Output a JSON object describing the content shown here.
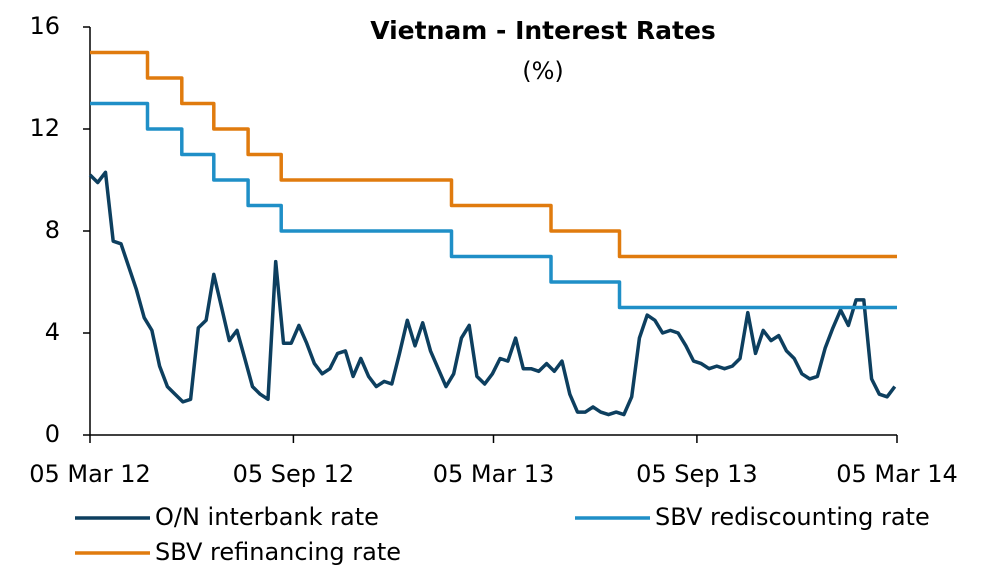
{
  "chart_data": {
    "type": "line",
    "title": "Vietnam - Interest Rates",
    "subtitle": "(%)",
    "xlim": [
      "2012-03-05",
      "2014-03-05"
    ],
    "xticks": [
      {
        "value": "2012-03-05",
        "label": "05 Mar 12"
      },
      {
        "value": "2012-09-05",
        "label": "05 Sep 12"
      },
      {
        "value": "2013-03-05",
        "label": "05 Mar 13"
      },
      {
        "value": "2013-09-05",
        "label": "05 Sep 13"
      },
      {
        "value": "2014-03-05",
        "label": "05 Mar 14"
      }
    ],
    "ylim": [
      0,
      16
    ],
    "yticks": [
      0,
      4,
      8,
      12,
      16
    ],
    "grid": false,
    "series": [
      {
        "name": "O/N interbank rate",
        "color": "#0d3f5f",
        "step": false,
        "x": [
          "2012-03-05",
          "2012-03-12",
          "2012-03-19",
          "2012-03-26",
          "2012-04-02",
          "2012-04-09",
          "2012-04-16",
          "2012-04-23",
          "2012-04-30",
          "2012-05-07",
          "2012-05-14",
          "2012-05-21",
          "2012-05-28",
          "2012-06-04",
          "2012-06-11",
          "2012-06-18",
          "2012-06-25",
          "2012-07-02",
          "2012-07-09",
          "2012-07-16",
          "2012-07-23",
          "2012-07-30",
          "2012-08-06",
          "2012-08-13",
          "2012-08-20",
          "2012-08-27",
          "2012-09-03",
          "2012-09-10",
          "2012-09-17",
          "2012-09-24",
          "2012-10-01",
          "2012-10-08",
          "2012-10-15",
          "2012-10-22",
          "2012-10-29",
          "2012-11-05",
          "2012-11-12",
          "2012-11-19",
          "2012-11-26",
          "2012-12-03",
          "2012-12-10",
          "2012-12-17",
          "2012-12-24",
          "2012-12-31",
          "2013-01-07",
          "2013-01-14",
          "2013-01-21",
          "2013-01-28",
          "2013-02-04",
          "2013-02-11",
          "2013-02-18",
          "2013-02-25",
          "2013-03-04",
          "2013-03-11",
          "2013-03-18",
          "2013-03-25",
          "2013-04-01",
          "2013-04-08",
          "2013-04-15",
          "2013-04-22",
          "2013-04-29",
          "2013-05-06",
          "2013-05-13",
          "2013-05-20",
          "2013-05-27",
          "2013-06-03",
          "2013-06-10",
          "2013-06-17",
          "2013-06-24",
          "2013-07-01",
          "2013-07-08",
          "2013-07-15",
          "2013-07-22",
          "2013-07-29",
          "2013-08-05",
          "2013-08-12",
          "2013-08-19",
          "2013-08-26",
          "2013-09-02",
          "2013-09-09",
          "2013-09-16",
          "2013-09-23",
          "2013-09-30",
          "2013-10-07",
          "2013-10-14",
          "2013-10-21",
          "2013-10-28",
          "2013-11-04",
          "2013-11-11",
          "2013-11-18",
          "2013-11-25",
          "2013-12-02",
          "2013-12-09",
          "2013-12-16",
          "2013-12-23",
          "2013-12-30",
          "2014-01-06",
          "2014-01-13",
          "2014-01-20",
          "2014-01-27",
          "2014-02-03",
          "2014-02-10",
          "2014-02-17",
          "2014-02-24",
          "2014-03-03"
        ],
        "values": [
          10.2,
          9.9,
          10.3,
          7.6,
          7.5,
          6.6,
          5.7,
          4.6,
          4.1,
          2.7,
          1.9,
          1.6,
          1.3,
          1.4,
          4.2,
          4.5,
          6.3,
          5.0,
          3.7,
          4.1,
          3.0,
          1.9,
          1.6,
          1.4,
          6.8,
          3.6,
          3.6,
          4.3,
          3.6,
          2.8,
          2.4,
          2.6,
          3.2,
          3.3,
          2.3,
          3.0,
          2.3,
          1.9,
          2.1,
          2.0,
          3.2,
          4.5,
          3.5,
          4.4,
          3.3,
          2.6,
          1.9,
          2.4,
          3.8,
          4.3,
          2.3,
          2.0,
          2.4,
          3.0,
          2.9,
          3.8,
          2.6,
          2.6,
          2.5,
          2.8,
          2.5,
          2.9,
          1.6,
          0.9,
          0.9,
          1.1,
          0.9,
          0.8,
          0.9,
          0.8,
          1.5,
          3.8,
          4.7,
          4.5,
          4.0,
          4.1,
          4.0,
          3.5,
          2.9,
          2.8,
          2.6,
          2.7,
          2.6,
          2.7,
          3.0,
          4.8,
          3.2,
          4.1,
          3.7,
          3.9,
          3.3,
          3.0,
          2.4,
          2.2,
          2.3,
          3.4,
          4.2,
          4.9,
          4.3,
          5.3,
          5.3,
          2.2,
          1.6,
          1.5,
          1.9
        ]
      },
      {
        "name": "SBV rediscounting rate",
        "color": "#1f8fc7",
        "step": true,
        "x": [
          "2012-03-05",
          "2012-04-26",
          "2012-05-27",
          "2012-06-25",
          "2012-07-26",
          "2012-08-25",
          "2013-01-26",
          "2013-04-26",
          "2013-06-27",
          "2014-03-05"
        ],
        "values": [
          13,
          12,
          11,
          10,
          9,
          8,
          7,
          6,
          5,
          5
        ]
      },
      {
        "name": "SBV refinancing rate",
        "color": "#e07b0e",
        "step": true,
        "x": [
          "2012-03-05",
          "2012-04-26",
          "2012-05-27",
          "2012-06-25",
          "2012-07-26",
          "2012-08-25",
          "2013-01-26",
          "2013-04-26",
          "2013-06-27",
          "2014-03-05"
        ],
        "values": [
          15,
          14,
          13,
          12,
          11,
          10,
          9,
          8,
          7,
          7
        ]
      }
    ]
  }
}
